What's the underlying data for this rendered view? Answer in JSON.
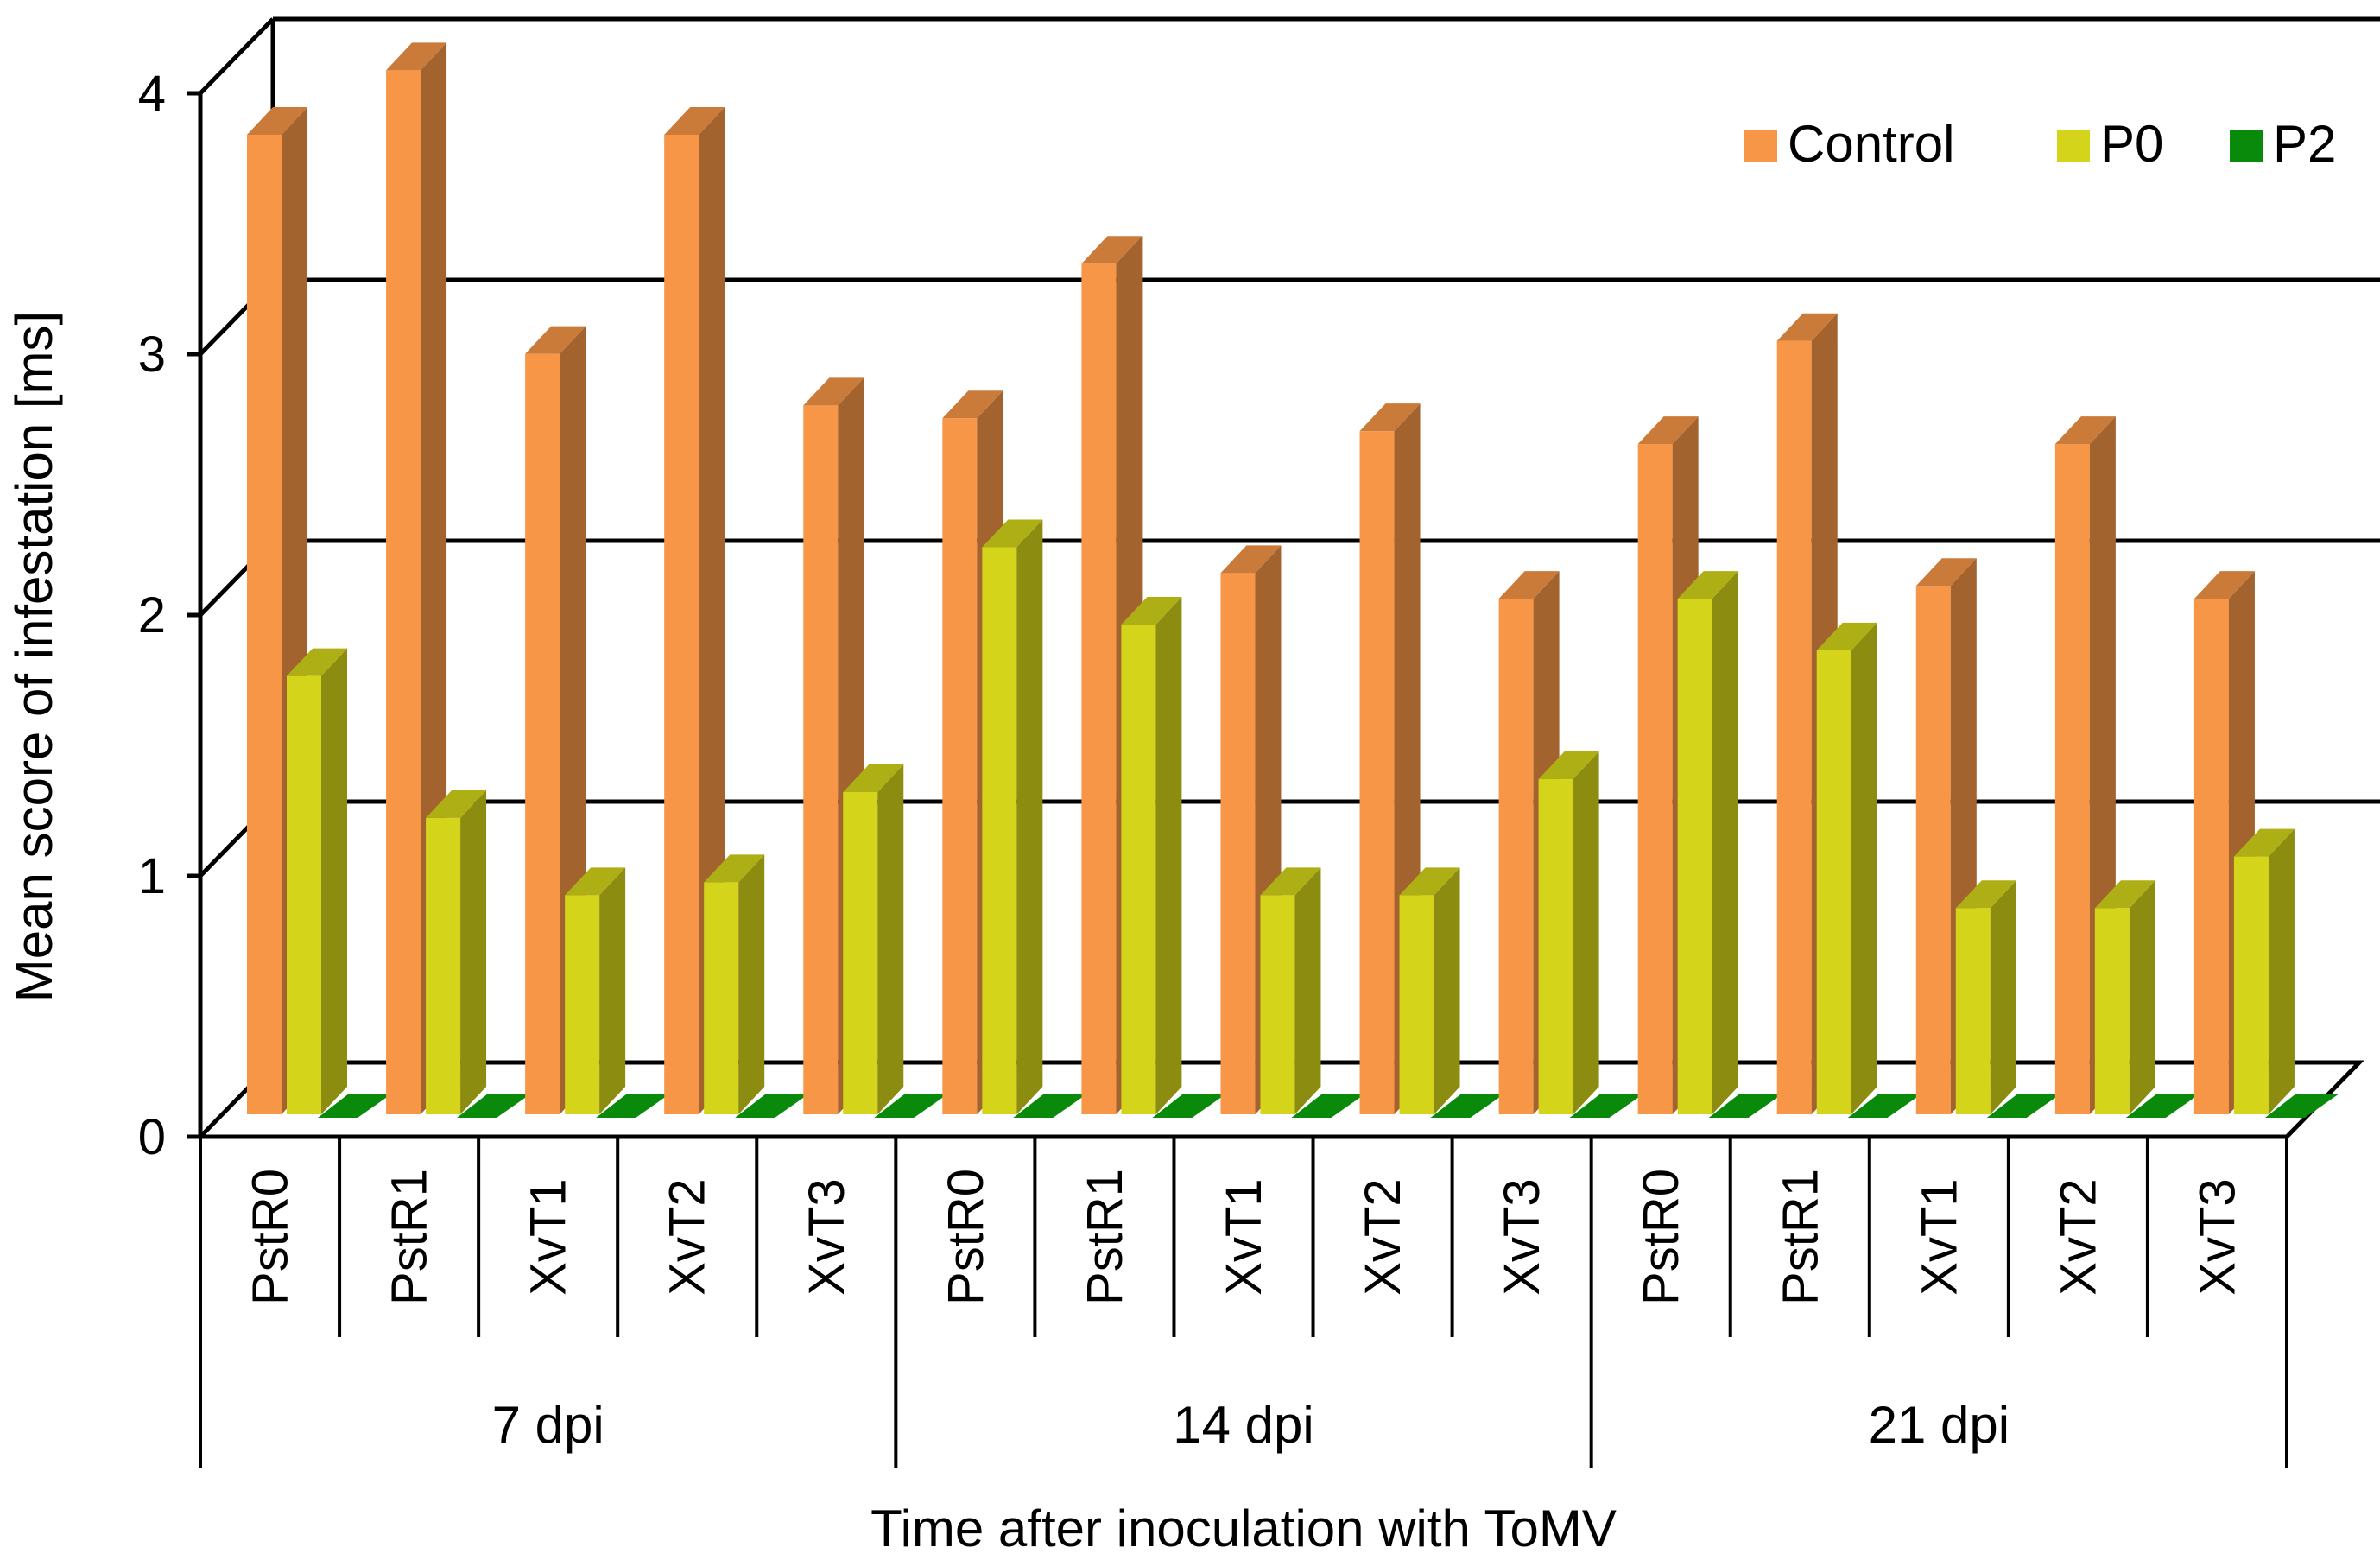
{
  "chart_data": {
    "type": "bar",
    "style": "3d-clustered",
    "title": "",
    "xlabel": "Time after inoculation with ToMV",
    "ylabel": "Mean score of infestation [ms]",
    "ylim": [
      0,
      4
    ],
    "yticks": [
      "0",
      "1",
      "2",
      "3",
      "4"
    ],
    "grid": true,
    "legend_position": "top-right",
    "groups": [
      {
        "label": "7 dpi",
        "categories": [
          "PstR0",
          "PstR1",
          "XvT1",
          "XvT2",
          "XvT3"
        ]
      },
      {
        "label": "14 dpi",
        "categories": [
          "PstR0",
          "PstR1",
          "XvT1",
          "XvT2",
          "XvT3"
        ]
      },
      {
        "label": "21 dpi",
        "categories": [
          "PstR0",
          "PstR1",
          "XvT1",
          "XvT2",
          "XvT3"
        ]
      }
    ],
    "series": [
      {
        "name": "Control",
        "color": "#f79646",
        "values": [
          3.8,
          4.05,
          2.95,
          3.8,
          2.75,
          2.7,
          3.3,
          2.1,
          2.65,
          2.0,
          2.6,
          3.0,
          2.05,
          2.6,
          2.0
        ]
      },
      {
        "name": "P0",
        "color": "#d4d41a",
        "values": [
          1.7,
          1.15,
          0.85,
          0.9,
          1.25,
          2.2,
          1.9,
          0.85,
          0.85,
          1.3,
          2.0,
          1.8,
          0.8,
          0.8,
          1.0
        ]
      },
      {
        "name": "P2",
        "color": "#0a8a0a",
        "values": [
          0,
          0,
          0,
          0,
          0,
          0,
          0,
          0,
          0,
          0,
          0,
          0,
          0,
          0,
          0
        ]
      }
    ]
  }
}
